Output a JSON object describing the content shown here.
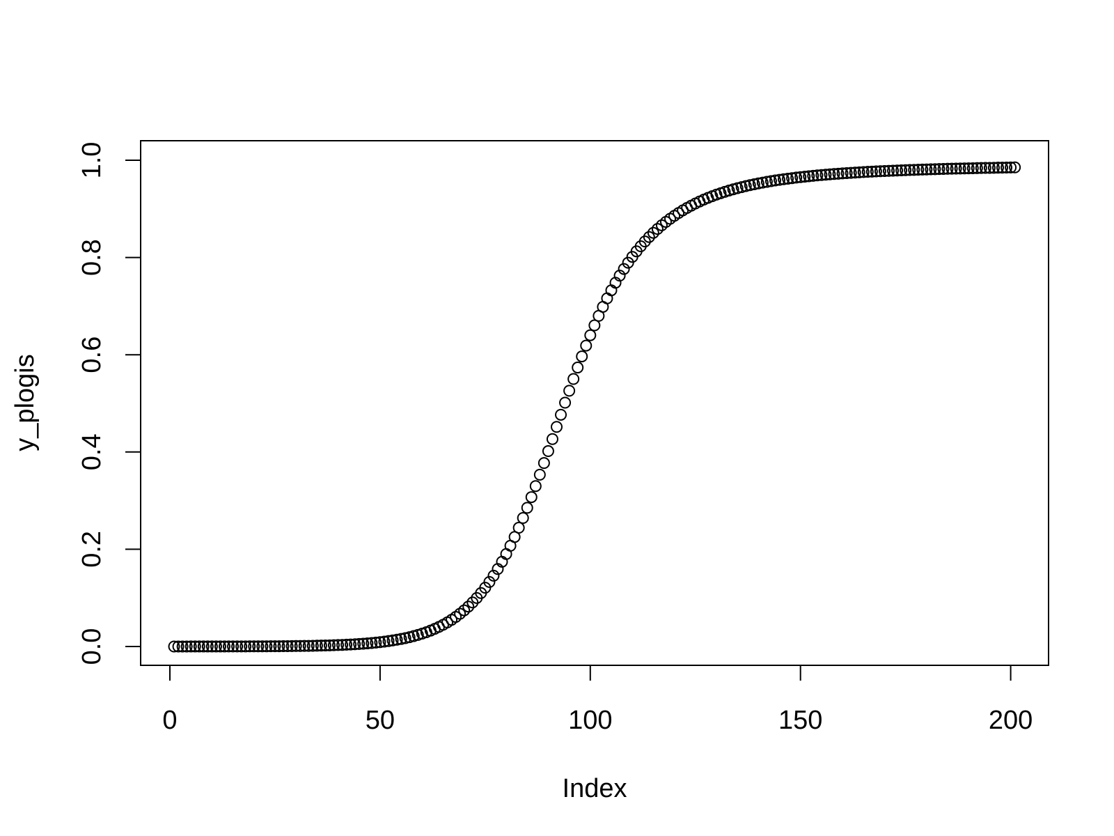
{
  "chart_data": {
    "type": "scatter",
    "title": "",
    "xlabel": "Index",
    "ylabel": "y_plogis",
    "xlim": [
      1,
      201
    ],
    "ylim": [
      0,
      1
    ],
    "x_ticks": [
      0,
      50,
      100,
      150,
      200
    ],
    "x_tick_labels": [
      "0",
      "50",
      "100",
      "150",
      "200"
    ],
    "y_ticks": [
      0,
      0.2,
      0.4,
      0.6,
      0.8,
      1.0
    ],
    "y_tick_labels": [
      "0.0",
      "0.2",
      "0.4",
      "0.6",
      "0.8",
      "1.0"
    ],
    "grid": false,
    "legend": "none",
    "point_style": "open-circle",
    "color": "#000000",
    "x": [
      1,
      2,
      3,
      4,
      5,
      6,
      7,
      8,
      9,
      10,
      11,
      12,
      13,
      14,
      15,
      16,
      17,
      18,
      19,
      20,
      21,
      22,
      23,
      24,
      25,
      26,
      27,
      28,
      29,
      30,
      31,
      32,
      33,
      34,
      35,
      36,
      37,
      38,
      39,
      40,
      41,
      42,
      43,
      44,
      45,
      46,
      47,
      48,
      49,
      50,
      51,
      52,
      53,
      54,
      55,
      56,
      57,
      58,
      59,
      60,
      61,
      62,
      63,
      64,
      65,
      66,
      67,
      68,
      69,
      70,
      71,
      72,
      73,
      74,
      75,
      76,
      77,
      78,
      79,
      80,
      81,
      82,
      83,
      84,
      85,
      86,
      87,
      88,
      89,
      90,
      91,
      92,
      93,
      94,
      95,
      96,
      97,
      98,
      99,
      100,
      101,
      102,
      103,
      104,
      105,
      106,
      107,
      108,
      109,
      110,
      111,
      112,
      113,
      114,
      115,
      116,
      117,
      118,
      119,
      120,
      121,
      122,
      123,
      124,
      125,
      126,
      127,
      128,
      129,
      130,
      131,
      132,
      133,
      134,
      135,
      136,
      137,
      138,
      139,
      140,
      141,
      142,
      143,
      144,
      145,
      146,
      147,
      148,
      149,
      150,
      151,
      152,
      153,
      154,
      155,
      156,
      157,
      158,
      159,
      160,
      161,
      162,
      163,
      164,
      165,
      166,
      167,
      168,
      169,
      170,
      171,
      172,
      173,
      174,
      175,
      176,
      177,
      178,
      179,
      180,
      181,
      182,
      183,
      184,
      185,
      186,
      187,
      188,
      189,
      190,
      191,
      192,
      193,
      194,
      195,
      196,
      197,
      198,
      199,
      200,
      201
    ],
    "y": [
      0.0,
      0.0,
      0.0,
      0.0,
      0.0001,
      0.0001,
      0.0001,
      0.0001,
      0.0001,
      0.0001,
      0.0001,
      0.0001,
      0.0001,
      0.0002,
      0.0002,
      0.0002,
      0.0002,
      0.0002,
      0.0003,
      0.0003,
      0.0003,
      0.0004,
      0.0004,
      0.0005,
      0.0005,
      0.0006,
      0.0007,
      0.0008,
      0.0009,
      0.001,
      0.0011,
      0.0012,
      0.0013,
      0.0015,
      0.0017,
      0.0019,
      0.0021,
      0.0024,
      0.0027,
      0.003,
      0.0033,
      0.0037,
      0.0041,
      0.0046,
      0.0052,
      0.0058,
      0.0065,
      0.0072,
      0.0081,
      0.009,
      0.01,
      0.0112,
      0.0125,
      0.0139,
      0.0155,
      0.0172,
      0.0192,
      0.0214,
      0.0238,
      0.0265,
      0.0294,
      0.0327,
      0.0363,
      0.0403,
      0.0447,
      0.0496,
      0.0549,
      0.0608,
      0.0673,
      0.0744,
      0.0821,
      0.0906,
      0.0998,
      0.1099,
      0.1209,
      0.1327,
      0.1456,
      0.1594,
      0.1743,
      0.1902,
      0.2072,
      0.2252,
      0.2442,
      0.2643,
      0.2853,
      0.3072,
      0.3299,
      0.3533,
      0.3773,
      0.4018,
      0.4266,
      0.4516,
      0.4766,
      0.5014,
      0.526,
      0.5501,
      0.5737,
      0.5966,
      0.6188,
      0.6401,
      0.6605,
      0.68,
      0.6985,
      0.716,
      0.7325,
      0.7481,
      0.7627,
      0.7764,
      0.7893,
      0.8013,
      0.8126,
      0.8231,
      0.8329,
      0.8421,
      0.8507,
      0.8587,
      0.8662,
      0.8732,
      0.8797,
      0.8858,
      0.8915,
      0.8969,
      0.9019,
      0.9066,
      0.911,
      0.9151,
      0.919,
      0.9226,
      0.926,
      0.9292,
      0.9322,
      0.935,
      0.9377,
      0.9402,
      0.9425,
      0.9447,
      0.9468,
      0.9488,
      0.9506,
      0.9523,
      0.954,
      0.9555,
      0.957,
      0.9584,
      0.9597,
      0.9609,
      0.9621,
      0.9632,
      0.9643,
      0.9653,
      0.9662,
      0.9671,
      0.968,
      0.9688,
      0.9696,
      0.9703,
      0.971,
      0.9717,
      0.9723,
      0.9729,
      0.9735,
      0.9741,
      0.9746,
      0.9751,
      0.9756,
      0.9761,
      0.9765,
      0.977,
      0.9774,
      0.9778,
      0.9782,
      0.9786,
      0.9789,
      0.9793,
      0.9796,
      0.9799,
      0.9802,
      0.9805,
      0.9808,
      0.9811,
      0.9814,
      0.9816,
      0.9819,
      0.9821,
      0.9824,
      0.9826,
      0.9828,
      0.983,
      0.9832,
      0.9834,
      0.9836,
      0.9838,
      0.984,
      0.9842,
      0.9843,
      0.9845,
      0.9847,
      0.9848,
      0.985,
      0.9851,
      0.9853
    ]
  }
}
